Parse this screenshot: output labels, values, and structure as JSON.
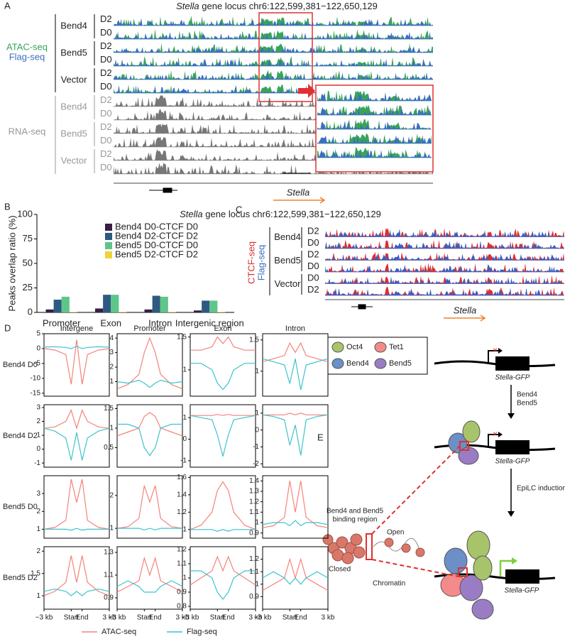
{
  "panels": [
    "A",
    "B",
    "C",
    "D",
    "E"
  ],
  "panel_a": {
    "title_gene": "Stella",
    "title_locus": "gene locus chr6:122,599,381−122,650,129",
    "assay_labels": [
      "ATAC-seq",
      "Flag-seq"
    ],
    "rna_label": "RNA-seq",
    "groups": [
      "Bend4",
      "Bend5",
      "Vector"
    ],
    "days": [
      [
        "D2",
        "D0"
      ],
      [
        "D2",
        "D0"
      ],
      [
        "D2",
        "D0"
      ]
    ],
    "rna_groups": [
      "Bend4",
      "Bend5",
      "Vector"
    ],
    "rna_days": [
      [
        "D2",
        "D0"
      ],
      [
        "D2",
        "D0"
      ],
      [
        "D2",
        "D0"
      ]
    ],
    "gene": "Stella"
  },
  "panel_c": {
    "title_gene": "Stella",
    "title_locus": "gene locus chr6:122,599,381−122,650,129",
    "assay_labels": [
      "CTCF-seq",
      "Flag-seq"
    ],
    "groups": [
      "Bend4",
      "Bend5",
      "Vector"
    ],
    "days": [
      [
        "D2",
        "D0"
      ],
      [
        "D2",
        "D0"
      ],
      [
        "D0",
        "D2"
      ]
    ],
    "gene": "Stella"
  },
  "panel_d": {
    "column_titles": [
      "Intergene",
      "Promoter",
      "Exon",
      "Intron"
    ],
    "row_labels": [
      "Bend4 D0",
      "Bend4 D2",
      "Bend5 D0",
      "Bend5 D2"
    ]
  },
  "panel_e": {
    "legend": [
      "Oct4",
      "Tet1",
      "Bend4",
      "Bend5"
    ],
    "reporter": [
      "Stella-GFP",
      "Stella-GFP",
      "Stella-GFP"
    ],
    "step1": [
      "Bend4",
      "Bend5"
    ],
    "step2": "EpiLC induction",
    "binding": [
      "Bend4 and Bend5",
      "binding region"
    ],
    "open": "Open",
    "closed": "Closed",
    "chromatin": "Chromatin"
  },
  "chart_data": [
    {
      "type": "bar",
      "ylabel": "Peaks overlap ratio (%)",
      "categories": [
        "Promoter",
        "Exon",
        "Intron",
        "Intergenic region"
      ],
      "ylim": [
        0,
        100
      ],
      "yticks": [
        0,
        25,
        50,
        75,
        100
      ],
      "legend": "upper right",
      "series": [
        {
          "name": "Bend4 D0-CTCF D0",
          "color": "#3a1e48",
          "values": [
            3,
            4,
            3,
            2
          ]
        },
        {
          "name": "Bend4 D2-CTCF D2",
          "color": "#2d5a80",
          "values": [
            13,
            18,
            17,
            12
          ]
        },
        {
          "name": "Bend5 D0-CTCF D0",
          "color": "#5ec68a",
          "values": [
            16,
            18,
            16,
            12
          ]
        },
        {
          "name": "Bend5 D2-CTCF D2",
          "color": "#f0d23a",
          "values": [
            0.3,
            0.3,
            0.3,
            0.3
          ]
        }
      ]
    },
    {
      "type": "line",
      "x": [
        -3,
        -2,
        -1,
        -0.5,
        0,
        0.5,
        1,
        2,
        3
      ],
      "xlim": [
        -3,
        3
      ],
      "ylim": [
        -16,
        5
      ],
      "yticks": [
        5,
        0,
        -5,
        -10,
        -15
      ],
      "series": [
        {
          "name": "ATAC-seq",
          "color": "#f4837a",
          "values": [
            0,
            -0.5,
            -2,
            -12,
            3,
            -12,
            -2,
            -0.5,
            0
          ]
        },
        {
          "name": "Flag-seq",
          "color": "#3cc4cc",
          "values": [
            0.5,
            0.6,
            0.4,
            0,
            0.8,
            0,
            0.4,
            0.6,
            0.5
          ]
        }
      ]
    },
    {
      "type": "line",
      "x": [
        -3,
        -2,
        -1,
        -0.5,
        0,
        0.5,
        1,
        2,
        3
      ],
      "xlim": [
        -3,
        3
      ],
      "ylim": [
        0,
        4.3
      ],
      "yticks": [
        1,
        2,
        3,
        4
      ],
      "series": [
        {
          "name": "ATAC-seq",
          "color": "#f4837a",
          "values": [
            0.5,
            0.8,
            1.5,
            3,
            4,
            3,
            1.5,
            0.8,
            0.5
          ]
        },
        {
          "name": "Flag-seq",
          "color": "#3cc4cc",
          "values": [
            1,
            0.9,
            1.1,
            0.9,
            0.6,
            0.9,
            1.1,
            0.9,
            1
          ]
        }
      ]
    },
    {
      "type": "line",
      "x": [
        -3,
        -2,
        -1,
        -0.5,
        0,
        0.5,
        1,
        2,
        3
      ],
      "xlim": [
        -3,
        3
      ],
      "ylim": [
        0.6,
        1.55
      ],
      "yticks": [
        1,
        1.5
      ],
      "series": [
        {
          "name": "ATAC-seq",
          "color": "#f4837a",
          "values": [
            1.3,
            1.3,
            1.35,
            1.5,
            1.4,
            1.5,
            1.35,
            1.3,
            1.3
          ]
        },
        {
          "name": "Flag-seq",
          "color": "#3cc4cc",
          "values": [
            1.1,
            1.1,
            1,
            0.8,
            0.7,
            0.8,
            1,
            1.1,
            1.1
          ]
        }
      ]
    },
    {
      "type": "line",
      "x": [
        -3,
        -2,
        -1,
        -0.5,
        0,
        0.5,
        1,
        2,
        3
      ],
      "xlim": [
        -3,
        3
      ],
      "ylim": [
        0.6,
        1.6
      ],
      "yticks": [
        1,
        1.5
      ],
      "series": [
        {
          "name": "ATAC-seq",
          "color": "#f4837a",
          "values": [
            1.15,
            1.2,
            1.25,
            1.45,
            1.3,
            1.45,
            1.25,
            1.2,
            1.15
          ]
        },
        {
          "name": "Flag-seq",
          "color": "#3cc4cc",
          "values": [
            1.2,
            1.15,
            1.1,
            0.8,
            1.2,
            0.7,
            1.1,
            1.15,
            1.2
          ]
        }
      ]
    },
    {
      "type": "line",
      "x": [
        -3,
        -2,
        -1,
        -0.5,
        0,
        0.5,
        1,
        2,
        3
      ],
      "xlim": [
        -3,
        3
      ],
      "ylim": [
        -1.3,
        3.2
      ],
      "yticks": [
        -1,
        0,
        1,
        2,
        3
      ],
      "series": [
        {
          "name": "ATAC-seq",
          "color": "#f4837a",
          "values": [
            1.5,
            1.6,
            2,
            2.8,
            1.5,
            2.8,
            2,
            1.6,
            1.5
          ]
        },
        {
          "name": "Flag-seq",
          "color": "#3cc4cc",
          "values": [
            1.5,
            1.3,
            0.8,
            -0.8,
            1.2,
            -0.8,
            0.8,
            1.3,
            1.5
          ]
        }
      ]
    },
    {
      "type": "line",
      "x": [
        -3,
        -2,
        -1,
        -0.5,
        0,
        0.5,
        1,
        2,
        3
      ],
      "xlim": [
        -3,
        3
      ],
      "ylim": [
        0,
        1.6
      ],
      "yticks": [
        0.5,
        1,
        1.5
      ],
      "series": [
        {
          "name": "ATAC-seq",
          "color": "#f4837a",
          "values": [
            0.8,
            0.9,
            1,
            1.3,
            1.4,
            1.3,
            1,
            0.9,
            0.8
          ]
        },
        {
          "name": "Flag-seq",
          "color": "#3cc4cc",
          "values": [
            1.1,
            1.1,
            1,
            0.5,
            0.3,
            0.5,
            1,
            1.1,
            1.1
          ]
        }
      ]
    },
    {
      "type": "line",
      "x": [
        -3,
        -2,
        -1,
        -0.5,
        0,
        0.5,
        1,
        2,
        3
      ],
      "xlim": [
        -3,
        3
      ],
      "ylim": [
        -1.3,
        1.6
      ],
      "yticks": [
        -1,
        0,
        1
      ],
      "series": [
        {
          "name": "ATAC-seq",
          "color": "#f4837a",
          "values": [
            1.1,
            1.1,
            1.1,
            1.15,
            1.1,
            1.15,
            1.1,
            1.1,
            1.1
          ]
        },
        {
          "name": "Flag-seq",
          "color": "#3cc4cc",
          "values": [
            1.1,
            1,
            0.9,
            0.2,
            -0.8,
            0.2,
            0.9,
            1,
            1.1
          ]
        }
      ]
    },
    {
      "type": "line",
      "x": [
        -3,
        -2,
        -1,
        -0.5,
        0,
        0.5,
        1,
        2,
        3
      ],
      "xlim": [
        -3,
        3
      ],
      "ylim": [
        -2.2,
        1.5
      ],
      "yticks": [
        -2,
        -1,
        0,
        1
      ],
      "series": [
        {
          "name": "ATAC-seq",
          "color": "#f4837a",
          "values": [
            0.9,
            0.9,
            0.9,
            1,
            0.9,
            1,
            0.9,
            0.9,
            0.9
          ]
        },
        {
          "name": "Flag-seq",
          "color": "#3cc4cc",
          "values": [
            0.9,
            0.8,
            0.6,
            -0.9,
            0.3,
            -1.5,
            0.6,
            0.8,
            0.9
          ]
        }
      ]
    },
    {
      "type": "line",
      "x": [
        -3,
        -2,
        -1,
        -0.5,
        0,
        0.5,
        1,
        2,
        3
      ],
      "xlim": [
        -3,
        3
      ],
      "ylim": [
        0.5,
        4
      ],
      "yticks": [
        1,
        2,
        3
      ],
      "series": [
        {
          "name": "ATAC-seq",
          "color": "#f4837a",
          "values": [
            1,
            1.1,
            1.5,
            3.8,
            2.5,
            3.8,
            1.5,
            1.1,
            1
          ]
        },
        {
          "name": "Flag-seq",
          "color": "#3cc4cc",
          "values": [
            1,
            1,
            1,
            0.95,
            1.05,
            0.95,
            1,
            1,
            1
          ]
        }
      ]
    },
    {
      "type": "line",
      "x": [
        -3,
        -2,
        -1,
        -0.5,
        0,
        0.5,
        1,
        2,
        3
      ],
      "xlim": [
        -3,
        3
      ],
      "ylim": [
        0.7,
        2.6
      ],
      "yticks": [
        1,
        2
      ],
      "series": [
        {
          "name": "ATAC-seq",
          "color": "#f4837a",
          "values": [
            1,
            1.05,
            1.3,
            2.3,
            1.8,
            2.3,
            1.3,
            1.05,
            1
          ]
        },
        {
          "name": "Flag-seq",
          "color": "#3cc4cc",
          "values": [
            1,
            1,
            1,
            0.95,
            1,
            0.95,
            1,
            1,
            1
          ]
        }
      ]
    },
    {
      "type": "line",
      "x": [
        -3,
        -2,
        -1,
        -0.5,
        0,
        0.5,
        1,
        2,
        3
      ],
      "xlim": [
        -3,
        3
      ],
      "ylim": [
        0.9,
        1.62
      ],
      "yticks": [
        1,
        1.2,
        1.4,
        1.6
      ],
      "series": [
        {
          "name": "ATAC-seq",
          "color": "#f4837a",
          "values": [
            1,
            1.05,
            1.2,
            1.45,
            1.55,
            1.45,
            1.2,
            1.05,
            1
          ]
        },
        {
          "name": "Flag-seq",
          "color": "#3cc4cc",
          "values": [
            1,
            1,
            1,
            0.98,
            1,
            0.98,
            1,
            1,
            1
          ]
        }
      ]
    },
    {
      "type": "line",
      "x": [
        -3,
        -2,
        -1,
        -0.5,
        0,
        0.5,
        1,
        2,
        3
      ],
      "xlim": [
        -3,
        3
      ],
      "ylim": [
        0.85,
        1.45
      ],
      "yticks": [
        0.9,
        1,
        1.1,
        1.2,
        1.3,
        1.4
      ],
      "series": [
        {
          "name": "ATAC-seq",
          "color": "#f4837a",
          "values": [
            0.95,
            0.97,
            1.05,
            1.4,
            1.1,
            1.4,
            1.05,
            0.97,
            0.95
          ]
        },
        {
          "name": "Flag-seq",
          "color": "#3cc4cc",
          "values": [
            0.98,
            1,
            1,
            0.97,
            1.02,
            0.97,
            1,
            1,
            0.98
          ]
        }
      ]
    },
    {
      "type": "line",
      "x": [
        -3,
        -2,
        -1,
        -0.5,
        0,
        0.5,
        1,
        2,
        3
      ],
      "xlim": [
        -3,
        3
      ],
      "ylim": [
        0.7,
        2.1
      ],
      "yticks": [
        1,
        1.5,
        2
      ],
      "xticks": [
        {
          "value": -3,
          "label": "−3 kb"
        },
        {
          "value": -0.5,
          "label": "Start"
        },
        {
          "value": 0.5,
          "label": "End"
        },
        {
          "value": 3,
          "label": "3 kb"
        }
      ],
      "series": [
        {
          "name": "ATAC-seq",
          "color": "#f4837a",
          "values": [
            1,
            1.1,
            1.3,
            1.9,
            1.3,
            1.9,
            1.3,
            1.1,
            1
          ]
        },
        {
          "name": "Flag-seq",
          "color": "#3cc4cc",
          "values": [
            1.1,
            1.15,
            1.1,
            1,
            1.1,
            1,
            1.1,
            1.15,
            1.1
          ]
        }
      ]
    },
    {
      "type": "line",
      "x": [
        -3,
        -2,
        -1,
        -0.5,
        0,
        0.5,
        1,
        2,
        3
      ],
      "xlim": [
        -3,
        3
      ],
      "ylim": [
        0.8,
        1.35
      ],
      "yticks": [
        0.9,
        1.1,
        1.3
      ],
      "xticks": [
        {
          "value": -3,
          "label": "−3 kb"
        },
        {
          "value": -0.5,
          "label": "Start"
        },
        {
          "value": 0.5,
          "label": "End"
        },
        {
          "value": 3,
          "label": "3 kb"
        }
      ],
      "series": [
        {
          "name": "ATAC-seq",
          "color": "#f4837a",
          "values": [
            0.95,
            1,
            1.05,
            1.25,
            1.1,
            1.25,
            1.05,
            1,
            0.95
          ]
        },
        {
          "name": "Flag-seq",
          "color": "#3cc4cc",
          "values": [
            1,
            1.05,
            1,
            0.95,
            0.95,
            0.95,
            1,
            1.05,
            1
          ]
        }
      ]
    },
    {
      "type": "line",
      "x": [
        -3,
        -2,
        -1,
        -0.5,
        0,
        0.5,
        1,
        2,
        3
      ],
      "xlim": [
        -3,
        3
      ],
      "ylim": [
        0.78,
        1.22
      ],
      "yticks": [
        0.8,
        0.9,
        1,
        1.1,
        1.2
      ],
      "xticks": [
        {
          "value": -3,
          "label": "−3 kb"
        },
        {
          "value": -0.5,
          "label": "Start"
        },
        {
          "value": 0.5,
          "label": "End"
        },
        {
          "value": 3,
          "label": "3 kb"
        }
      ],
      "series": [
        {
          "name": "ATAC-seq",
          "color": "#f4837a",
          "values": [
            0.95,
            1,
            1.05,
            1.15,
            1.05,
            1.15,
            1.05,
            1,
            0.95
          ]
        },
        {
          "name": "Flag-seq",
          "color": "#3cc4cc",
          "values": [
            1.05,
            1.05,
            1,
            0.9,
            0.85,
            0.9,
            1,
            1.05,
            1.05
          ]
        }
      ]
    },
    {
      "type": "line",
      "x": [
        -3,
        -2,
        -1,
        -0.5,
        0,
        0.5,
        1,
        2,
        3
      ],
      "xlim": [
        -3,
        3
      ],
      "ylim": [
        0.8,
        1.3
      ],
      "yticks": [
        0.9,
        1,
        1.1,
        1.2
      ],
      "xticks": [
        {
          "value": -3,
          "label": "−3 kb"
        },
        {
          "value": -0.5,
          "label": "Start"
        },
        {
          "value": 0.5,
          "label": "End"
        },
        {
          "value": 3,
          "label": "3 kb"
        }
      ],
      "series": [
        {
          "name": "ATAC-seq",
          "color": "#f4837a",
          "values": [
            0.95,
            1,
            1.05,
            1.2,
            1.05,
            1.2,
            1.05,
            1,
            0.95
          ]
        },
        {
          "name": "Flag-seq",
          "color": "#3cc4cc",
          "values": [
            1.05,
            1.1,
            1.05,
            1,
            1.05,
            1,
            1.05,
            1.1,
            1.05
          ]
        }
      ]
    }
  ]
}
